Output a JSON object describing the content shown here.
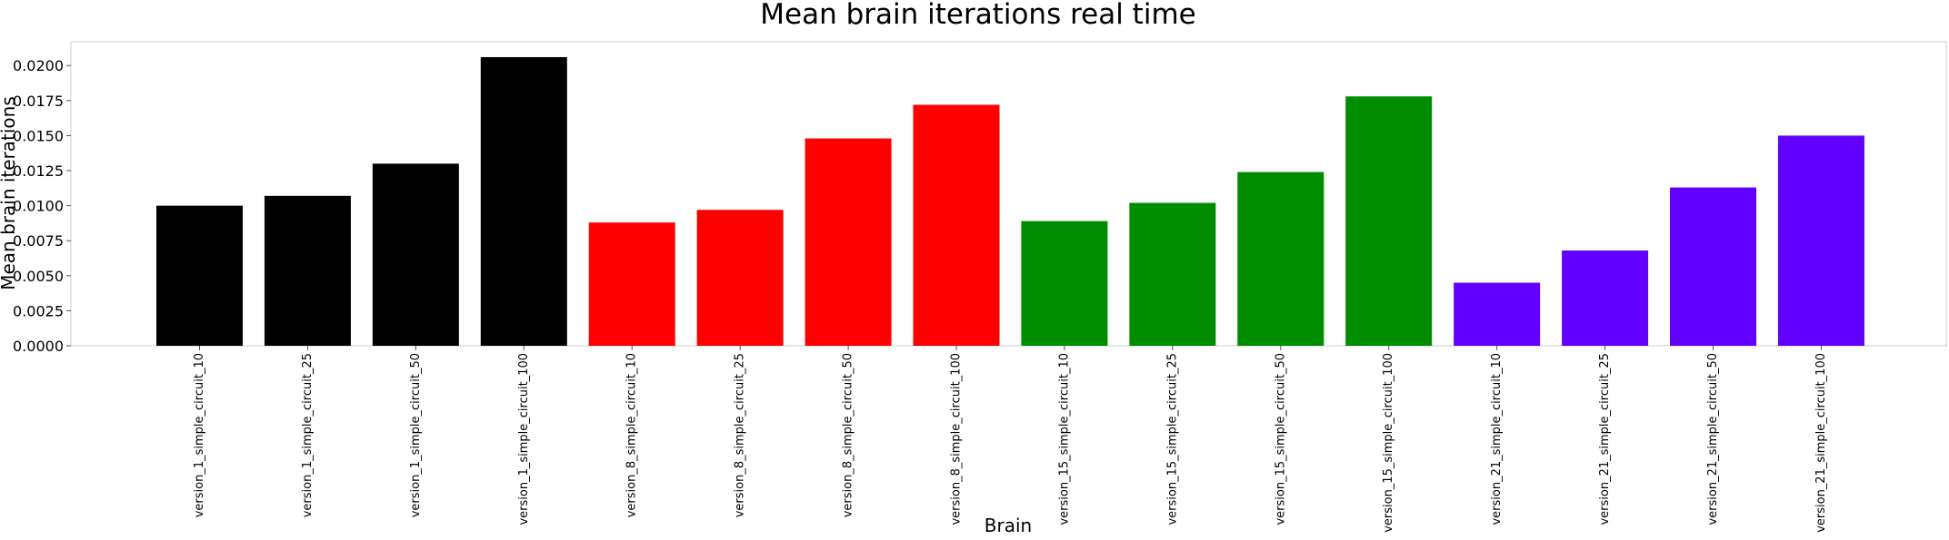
{
  "chart_data": {
    "type": "bar",
    "title": "Mean brain iterations real time",
    "xlabel": "Brain",
    "ylabel": "Mean brain iterations",
    "ylim": [
      0,
      0.0217
    ],
    "yticks": [
      "0.0000",
      "0.0025",
      "0.0050",
      "0.0075",
      "0.0100",
      "0.0125",
      "0.0150",
      "0.0175",
      "0.0200"
    ],
    "grid": false,
    "categories": [
      "version_1_simple_circuit_10",
      "version_1_simple_circuit_25",
      "version_1_simple_circuit_50",
      "version_1_simple_circuit_100",
      "version_8_simple_circuit_10",
      "version_8_simple_circuit_25",
      "version_8_simple_circuit_50",
      "version_8_simple_circuit_100",
      "version_15_simple_circuit_10",
      "version_15_simple_circuit_25",
      "version_15_simple_circuit_50",
      "version_15_simple_circuit_100",
      "version_21_simple_circuit_10",
      "version_21_simple_circuit_25",
      "version_21_simple_circuit_50",
      "version_21_simple_circuit_100"
    ],
    "values": [
      0.01,
      0.0107,
      0.013,
      0.0206,
      0.0088,
      0.0097,
      0.0148,
      0.0172,
      0.0089,
      0.0102,
      0.0124,
      0.0178,
      0.0045,
      0.0068,
      0.0113,
      0.015
    ],
    "colors": [
      "#000000",
      "#000000",
      "#000000",
      "#000000",
      "#ff0000",
      "#ff0000",
      "#ff0000",
      "#ff0000",
      "#008c00",
      "#008c00",
      "#008c00",
      "#008c00",
      "#6100ff",
      "#6100ff",
      "#6100ff",
      "#6100ff"
    ]
  }
}
